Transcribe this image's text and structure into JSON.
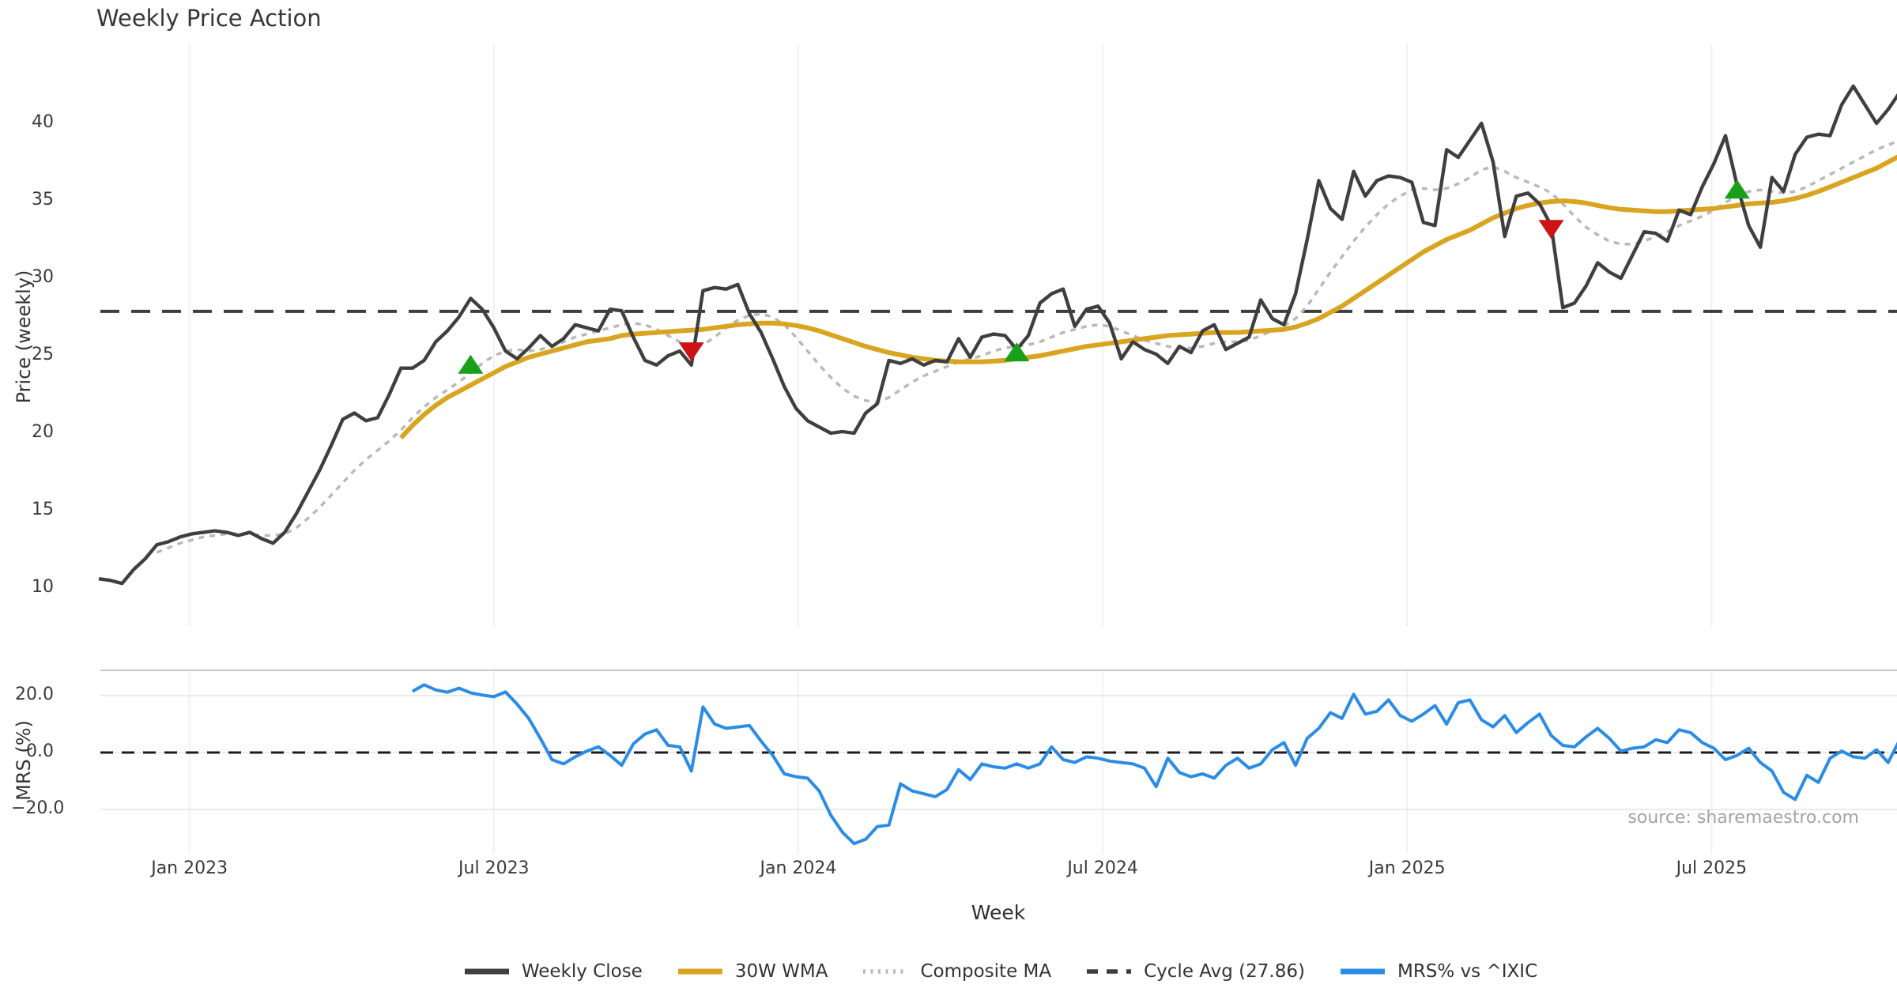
{
  "source_note": "source: sharemaestro.com",
  "x_axis": {
    "label": "Week",
    "ticks": [
      {
        "week": 7.8,
        "label": "Jan 2023"
      },
      {
        "week": 34.0,
        "label": "Jul 2023"
      },
      {
        "week": 60.2,
        "label": "Jan 2024"
      },
      {
        "week": 86.4,
        "label": "Jul 2024"
      },
      {
        "week": 112.6,
        "label": "Jan 2025"
      },
      {
        "week": 138.8,
        "label": "Jul 2025"
      }
    ]
  },
  "legend": {
    "items": [
      {
        "label": "Weekly Close",
        "color": "#3f3f3f",
        "style": "solid"
      },
      {
        "label": "30W WMA",
        "color": "#d9a521",
        "style": "solid"
      },
      {
        "label": "Composite MA",
        "color": "#b9b9b9",
        "style": "dotted"
      },
      {
        "label": "Cycle Avg (27.86)",
        "color": "#3d3d3d",
        "style": "dashed"
      },
      {
        "label": "MRS% vs ^IXIC",
        "color": "#2b8ce6",
        "style": "solid"
      }
    ]
  },
  "chart_data": [
    {
      "type": "line",
      "panel": "price",
      "title": "Weekly Price Action",
      "ylabel": "Price (weekly)",
      "x_unit": "week index (weekly bars, ~Nov 2022 – Nov 2025)",
      "ylim": [
        7.6,
        45.1
      ],
      "grid": "vertical-only",
      "yticks": [
        {
          "value": 40,
          "label": "40"
        },
        {
          "value": 35,
          "label": "35"
        },
        {
          "value": 30,
          "label": "30"
        },
        {
          "value": 25,
          "label": "25"
        },
        {
          "value": 20,
          "label": "20"
        },
        {
          "value": 15,
          "label": "15"
        },
        {
          "value": 10,
          "label": "10"
        }
      ],
      "reference_line": {
        "name": "Cycle Avg (27.86)",
        "value": 27.86,
        "color": "#3d3d3d",
        "style": "dashed",
        "width": 4
      },
      "series": [
        {
          "name": "Composite MA",
          "color": "#b9b9b9",
          "style": "dotted",
          "width": 3.5,
          "values": [
            null,
            null,
            null,
            null,
            null,
            12.3,
            12.6,
            12.9,
            13.1,
            13.3,
            13.4,
            13.5,
            13.5,
            13.5,
            13.4,
            13.4,
            13.5,
            13.9,
            14.5,
            15.2,
            16.0,
            16.8,
            17.6,
            18.3,
            18.9,
            19.5,
            20.2,
            21.0,
            21.7,
            22.3,
            22.8,
            23.3,
            23.9,
            24.5,
            25.0,
            25.3,
            25.4,
            25.3,
            25.4,
            25.6,
            25.9,
            26.2,
            26.4,
            26.6,
            26.8,
            27.0,
            27.1,
            27.0,
            26.7,
            26.3,
            25.9,
            25.6,
            25.7,
            26.2,
            26.8,
            27.3,
            27.6,
            27.7,
            27.5,
            27.0,
            26.2,
            25.3,
            24.4,
            23.6,
            22.9,
            22.4,
            22.1,
            22.0,
            22.3,
            22.8,
            23.3,
            23.7,
            24.0,
            24.3,
            24.6,
            24.8,
            25.0,
            25.3,
            25.5,
            25.6,
            25.7,
            25.9,
            26.2,
            26.5,
            26.7,
            26.9,
            27.0,
            26.9,
            26.6,
            26.3,
            26.0,
            25.8,
            25.6,
            25.5,
            25.5,
            25.6,
            25.8,
            25.9,
            25.9,
            26.0,
            26.3,
            26.6,
            26.9,
            27.4,
            28.2,
            29.3,
            30.4,
            31.4,
            32.4,
            33.3,
            34.1,
            34.8,
            35.3,
            35.7,
            35.8,
            35.7,
            35.8,
            36.1,
            36.5,
            37.0,
            37.2,
            36.9,
            36.5,
            36.2,
            35.9,
            35.5,
            34.8,
            34.0,
            33.3,
            32.8,
            32.4,
            32.2,
            32.2,
            32.4,
            32.7,
            33.0,
            33.4,
            33.7,
            34.0,
            34.4,
            34.9,
            35.3,
            35.6,
            35.7,
            35.6,
            35.5,
            35.6,
            35.9,
            36.3,
            36.7,
            37.1,
            37.5,
            37.9,
            38.3,
            38.6,
            38.9
          ]
        },
        {
          "name": "30W WMA",
          "color": "#d9a521",
          "style": "solid",
          "width": 6,
          "values": [
            null,
            null,
            null,
            null,
            null,
            null,
            null,
            null,
            null,
            null,
            null,
            null,
            null,
            null,
            null,
            null,
            null,
            null,
            null,
            null,
            null,
            null,
            null,
            null,
            null,
            null,
            19.7,
            20.5,
            21.2,
            21.8,
            22.3,
            22.7,
            23.1,
            23.5,
            23.9,
            24.3,
            24.6,
            24.9,
            25.1,
            25.3,
            25.5,
            25.7,
            25.9,
            26.0,
            26.1,
            26.3,
            26.4,
            26.45,
            26.5,
            26.55,
            26.6,
            26.65,
            26.7,
            26.8,
            26.9,
            27.0,
            27.05,
            27.1,
            27.1,
            27.05,
            26.95,
            26.8,
            26.6,
            26.35,
            26.1,
            25.85,
            25.6,
            25.4,
            25.2,
            25.05,
            24.9,
            24.8,
            24.7,
            24.65,
            24.6,
            24.6,
            24.6,
            24.65,
            24.7,
            24.8,
            24.9,
            25.0,
            25.15,
            25.3,
            25.45,
            25.6,
            25.7,
            25.8,
            25.9,
            26.0,
            26.1,
            26.2,
            26.3,
            26.35,
            26.4,
            26.45,
            26.5,
            26.5,
            26.5,
            26.55,
            26.6,
            26.65,
            26.7,
            26.85,
            27.1,
            27.4,
            27.8,
            28.2,
            28.7,
            29.2,
            29.7,
            30.2,
            30.7,
            31.2,
            31.7,
            32.1,
            32.5,
            32.8,
            33.1,
            33.5,
            33.9,
            34.2,
            34.5,
            34.7,
            34.85,
            34.95,
            35.0,
            34.95,
            34.85,
            34.7,
            34.55,
            34.45,
            34.4,
            34.35,
            34.3,
            34.3,
            34.35,
            34.4,
            34.45,
            34.5,
            34.6,
            34.7,
            34.8,
            34.85,
            34.9,
            35.0,
            35.15,
            35.35,
            35.6,
            35.9,
            36.2,
            36.5,
            36.8,
            37.1,
            37.5,
            37.9
          ]
        },
        {
          "name": "Weekly Close",
          "color": "#3f3f3f",
          "style": "solid",
          "width": 4.4,
          "values": [
            10.6,
            10.5,
            10.3,
            11.2,
            11.9,
            12.8,
            13.0,
            13.3,
            13.5,
            13.6,
            13.7,
            13.6,
            13.4,
            13.6,
            13.2,
            12.9,
            13.6,
            14.8,
            16.2,
            17.6,
            19.2,
            20.9,
            21.3,
            20.8,
            21.0,
            22.5,
            24.2,
            24.2,
            24.7,
            25.9,
            26.6,
            27.5,
            28.7,
            28.0,
            26.8,
            25.3,
            24.8,
            25.5,
            26.3,
            25.6,
            26.1,
            27.0,
            26.8,
            26.6,
            28.0,
            27.9,
            26.2,
            24.7,
            24.4,
            25.0,
            25.3,
            24.4,
            29.2,
            29.4,
            29.3,
            29.6,
            27.7,
            26.5,
            24.8,
            23.0,
            21.6,
            20.8,
            20.4,
            20.0,
            20.1,
            20.0,
            21.3,
            21.9,
            24.7,
            24.5,
            24.8,
            24.4,
            24.7,
            24.6,
            26.1,
            24.9,
            26.2,
            26.4,
            26.3,
            25.4,
            26.3,
            28.4,
            29.0,
            29.3,
            26.9,
            28.0,
            28.2,
            27.1,
            24.8,
            25.9,
            25.4,
            25.1,
            24.5,
            25.6,
            25.2,
            26.6,
            27.0,
            25.4,
            25.8,
            26.2,
            28.6,
            27.4,
            27.0,
            29.0,
            32.5,
            36.3,
            34.5,
            33.8,
            36.9,
            35.3,
            36.3,
            36.6,
            36.5,
            36.2,
            33.6,
            33.4,
            38.3,
            37.8,
            38.9,
            40.0,
            37.5,
            32.7,
            35.3,
            35.5,
            34.8,
            33.4,
            28.1,
            28.4,
            29.5,
            31.0,
            30.4,
            30.0,
            31.5,
            33.0,
            32.9,
            32.4,
            34.4,
            34.1,
            35.9,
            37.4,
            39.2,
            36.0,
            33.4,
            32.0,
            36.5,
            35.6,
            38.0,
            39.1,
            39.3,
            39.2,
            41.2,
            42.4,
            41.2,
            40.0,
            40.9,
            42.0
          ]
        }
      ],
      "signals": {
        "buy_color": "#18a018",
        "sell_color": "#cc1414",
        "buy": [
          {
            "week": 32,
            "value": 24.4
          },
          {
            "week": 79,
            "value": 25.2
          },
          {
            "week": 141,
            "value": 35.7
          }
        ],
        "sell": [
          {
            "week": 51,
            "value": 25.3
          },
          {
            "week": 125,
            "value": 33.2
          }
        ]
      }
    },
    {
      "type": "line",
      "panel": "mrs",
      "ylabel": "MRS (%)",
      "ylim": [
        -35.6,
        28.9
      ],
      "yticks": [
        {
          "value": 20,
          "label": "20.0"
        },
        {
          "value": 0,
          "label": "0.0"
        },
        {
          "value": -20,
          "label": "−20.0"
        }
      ],
      "zero_line": {
        "value": 0,
        "color": "#1c1c1c",
        "style": "dashed",
        "width": 3
      },
      "series": [
        {
          "name": "MRS% vs ^IXIC",
          "color": "#2b8ce6",
          "style": "solid",
          "width": 4,
          "values": [
            null,
            null,
            null,
            null,
            null,
            null,
            null,
            null,
            null,
            null,
            null,
            null,
            null,
            null,
            null,
            null,
            null,
            null,
            null,
            null,
            null,
            null,
            null,
            null,
            null,
            null,
            null,
            21.5,
            23.8,
            22.0,
            21.2,
            22.6,
            21.0,
            20.2,
            19.6,
            21.3,
            17.0,
            12.0,
            5.0,
            -2.5,
            -4.0,
            -1.5,
            0.5,
            2.0,
            -1.0,
            -4.5,
            3.0,
            6.5,
            8.0,
            2.5,
            2.0,
            -6.5,
            16.0,
            10.0,
            8.5,
            9.0,
            9.5,
            4.0,
            -1.0,
            -7.5,
            -8.5,
            -9.0,
            -13.5,
            -22.0,
            -28.0,
            -32.0,
            -30.5,
            -26.0,
            -25.5,
            -11.0,
            -13.5,
            -14.5,
            -15.5,
            -13.0,
            -6.0,
            -9.5,
            -4.0,
            -5.0,
            -5.5,
            -4.0,
            -5.5,
            -4.0,
            2.0,
            -2.5,
            -3.5,
            -1.5,
            -2.0,
            -3.0,
            -3.5,
            -4.0,
            -5.5,
            -12.0,
            -2.0,
            -7.0,
            -8.5,
            -7.5,
            -9.0,
            -4.5,
            -2.0,
            -5.5,
            -4.0,
            1.0,
            3.5,
            -4.5,
            5.0,
            8.5,
            14.0,
            12.0,
            20.5,
            13.5,
            14.5,
            18.5,
            13.0,
            11.0,
            13.5,
            16.5,
            10.0,
            17.5,
            18.5,
            11.5,
            9.0,
            13.0,
            7.0,
            10.5,
            13.5,
            6.0,
            2.5,
            2.0,
            5.5,
            8.5,
            5.0,
            0.5,
            1.5,
            2.0,
            4.5,
            3.5,
            8.0,
            7.0,
            3.5,
            1.5,
            -2.5,
            -1.0,
            1.5,
            -3.5,
            -6.5,
            -14.0,
            -16.5,
            -8.0,
            -10.5,
            -2.0,
            0.5,
            -1.5,
            -2.0,
            1.0,
            -3.5,
            4.5,
            5.5,
            2.0
          ]
        }
      ]
    }
  ]
}
